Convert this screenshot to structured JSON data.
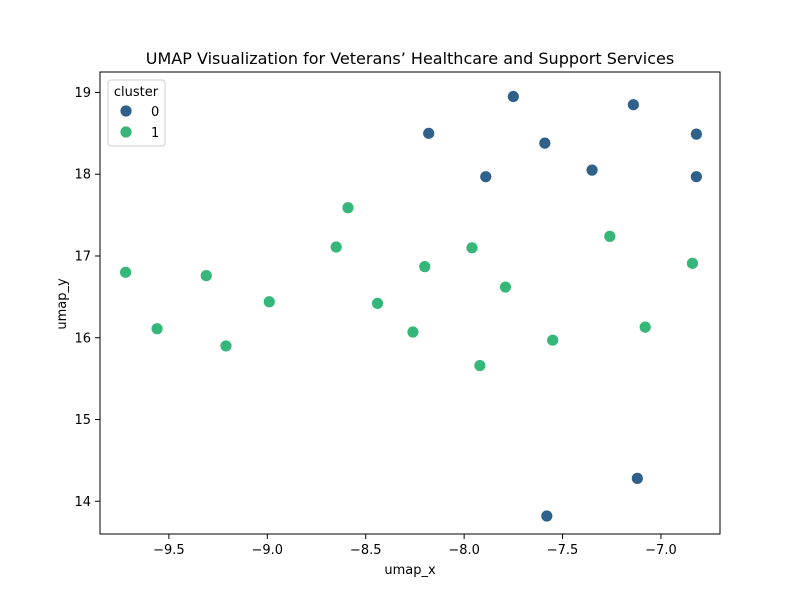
{
  "chart_data": {
    "type": "scatter",
    "title": "UMAP Visualization for Veterans’ Healthcare and Support Services",
    "xlabel": "umap_x",
    "ylabel": "umap_y",
    "xlim": [
      -9.85,
      -6.7
    ],
    "ylim": [
      13.6,
      19.25
    ],
    "xticks": [
      -9.5,
      -9.0,
      -8.5,
      -8.0,
      -7.5,
      -7.0
    ],
    "xtick_labels": [
      "−9.5",
      "−9.0",
      "−8.5",
      "−8.0",
      "−7.5",
      "−7.0"
    ],
    "yticks": [
      14,
      15,
      16,
      17,
      18,
      19
    ],
    "ytick_labels": [
      "14",
      "15",
      "16",
      "17",
      "18",
      "19"
    ],
    "grid": false,
    "legend": {
      "title": "cluster",
      "placement": "top-left",
      "entries": [
        {
          "label": "0",
          "color": "#30618b"
        },
        {
          "label": "1",
          "color": "#35b779"
        }
      ]
    },
    "series": [
      {
        "name": "0",
        "color": "#30618b",
        "points": [
          {
            "x": -8.18,
            "y": 18.5
          },
          {
            "x": -7.75,
            "y": 18.95
          },
          {
            "x": -7.59,
            "y": 18.38
          },
          {
            "x": -7.89,
            "y": 17.97
          },
          {
            "x": -7.35,
            "y": 18.05
          },
          {
            "x": -7.14,
            "y": 18.85
          },
          {
            "x": -6.82,
            "y": 18.49
          },
          {
            "x": -6.82,
            "y": 17.97
          },
          {
            "x": -7.12,
            "y": 14.28
          },
          {
            "x": -7.58,
            "y": 13.82
          }
        ]
      },
      {
        "name": "1",
        "color": "#35b779",
        "points": [
          {
            "x": -9.72,
            "y": 16.8
          },
          {
            "x": -9.56,
            "y": 16.11
          },
          {
            "x": -9.31,
            "y": 16.76
          },
          {
            "x": -9.21,
            "y": 15.9
          },
          {
            "x": -8.99,
            "y": 16.44
          },
          {
            "x": -8.65,
            "y": 17.11
          },
          {
            "x": -8.59,
            "y": 17.59
          },
          {
            "x": -8.44,
            "y": 16.42
          },
          {
            "x": -8.26,
            "y": 16.07
          },
          {
            "x": -8.2,
            "y": 16.87
          },
          {
            "x": -7.96,
            "y": 17.1
          },
          {
            "x": -7.92,
            "y": 15.66
          },
          {
            "x": -7.79,
            "y": 16.62
          },
          {
            "x": -7.55,
            "y": 15.97
          },
          {
            "x": -7.26,
            "y": 17.24
          },
          {
            "x": -7.08,
            "y": 16.13
          },
          {
            "x": -6.84,
            "y": 16.91
          }
        ]
      }
    ]
  }
}
